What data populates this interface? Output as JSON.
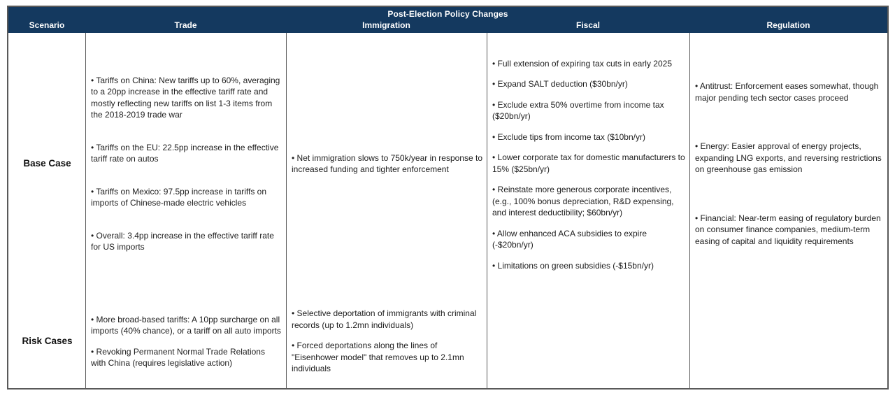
{
  "table": {
    "title": "Post-Election Policy Changes",
    "columns": [
      "Scenario",
      "Trade",
      "Immigration",
      "Fiscal",
      "Regulation"
    ],
    "rows": [
      {
        "scenario": "Base Case",
        "trade": [
          "Tariffs on China: New tariffs up to 60%, averaging to a 20pp increase in the effective tariff rate and mostly reflecting new tariffs on list 1-3 items from the 2018-2019 trade war",
          "Tariffs on the EU: 22.5pp increase in the effective tariff rate on autos",
          "Tariffs on Mexico: 97.5pp increase in tariffs on imports of Chinese-made electric vehicles",
          "Overall: 3.4pp increase in the effective tariff rate for US imports"
        ],
        "immigration": [
          "Net immigration slows to 750k/year in response to increased funding and tighter enforcement"
        ],
        "fiscal": [
          "Full extension of expiring tax cuts in early 2025",
          "Expand SALT deduction ($30bn/yr)",
          "Exclude extra 50% overtime from income tax ($20bn/yr)",
          "Exclude tips from income tax ($10bn/yr)",
          "Lower corporate tax for domestic manufacturers to 15% ($25bn/yr)",
          "Reinstate more generous corporate incentives, (e.g., 100% bonus depreciation, R&D expensing, and interest deductibility; $60bn/yr)",
          "Allow enhanced ACA subsidies to expire (-$20bn/yr)",
          "Limitations on green subsidies (-$15bn/yr)"
        ],
        "regulation": [
          "Antitrust: Enforcement eases somewhat, though major pending tech sector cases proceed",
          "Energy: Easier approval of energy projects, expanding LNG exports, and reversing restrictions on greenhouse gas emission",
          "Financial: Near-term easing of regulatory burden on consumer finance companies, medium-term easing of capital and liquidity requirements"
        ]
      },
      {
        "scenario": "Risk Cases",
        "trade": [
          "More broad-based tariffs: A 10pp surcharge on all imports (40% chance), or a tariff on all auto imports",
          "Revoking Permanent Normal Trade Relations with China (requires legislative action)"
        ],
        "immigration": [
          "Selective deportation of immigrants with criminal records (up to 1.2mn individuals)",
          "Forced deportations along the lines of \"Eisenhower model\" that removes up to 2.1mn individuals"
        ],
        "fiscal": [],
        "regulation": []
      }
    ]
  },
  "colors": {
    "header_bg": "#14395f",
    "header_text": "#ffffff",
    "border": "#595959",
    "body_text": "#1d1d1d"
  }
}
